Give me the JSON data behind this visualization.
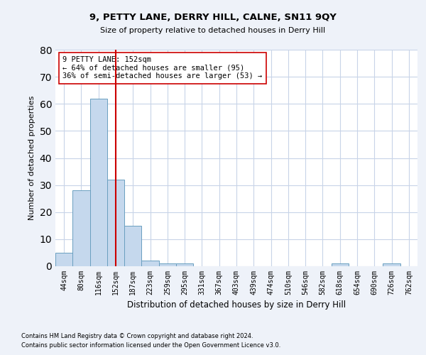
{
  "title": "9, PETTY LANE, DERRY HILL, CALNE, SN11 9QY",
  "subtitle": "Size of property relative to detached houses in Derry Hill",
  "xlabel": "Distribution of detached houses by size in Derry Hill",
  "ylabel": "Number of detached properties",
  "bins": [
    "44sqm",
    "80sqm",
    "116sqm",
    "152sqm",
    "187sqm",
    "223sqm",
    "259sqm",
    "295sqm",
    "331sqm",
    "367sqm",
    "403sqm",
    "439sqm",
    "474sqm",
    "510sqm",
    "546sqm",
    "582sqm",
    "618sqm",
    "654sqm",
    "690sqm",
    "726sqm",
    "762sqm"
  ],
  "values": [
    5,
    28,
    62,
    32,
    15,
    2,
    1,
    1,
    0,
    0,
    0,
    0,
    0,
    0,
    0,
    0,
    1,
    0,
    0,
    1,
    0
  ],
  "bar_color": "#c5d8ed",
  "bar_edge_color": "#6a9fc0",
  "vline_x": 3,
  "vline_color": "#cc0000",
  "annotation_text": "9 PETTY LANE: 152sqm\n← 64% of detached houses are smaller (95)\n36% of semi-detached houses are larger (53) →",
  "annotation_box_color": "white",
  "annotation_box_edge": "#cc0000",
  "ylim": [
    0,
    80
  ],
  "yticks": [
    0,
    10,
    20,
    30,
    40,
    50,
    60,
    70,
    80
  ],
  "footnote1": "Contains HM Land Registry data © Crown copyright and database right 2024.",
  "footnote2": "Contains public sector information licensed under the Open Government Licence v3.0.",
  "bg_color": "#eef2f9",
  "plot_bg_color": "#ffffff",
  "grid_color": "#c8d4e8"
}
